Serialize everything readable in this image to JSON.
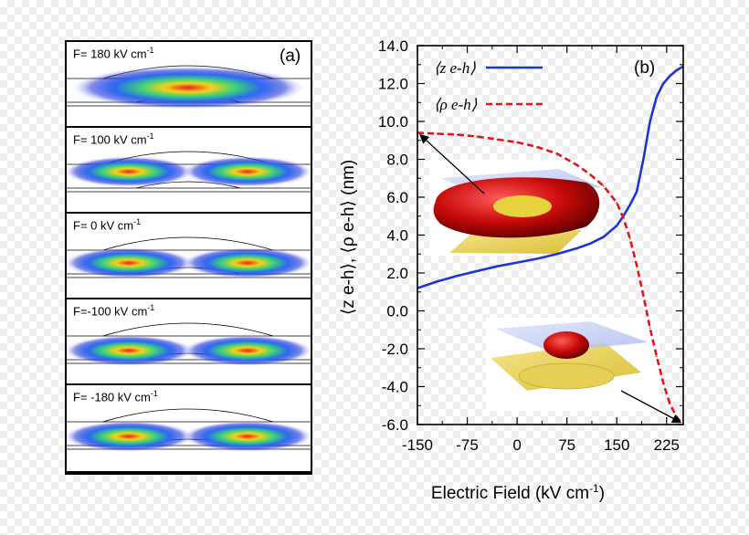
{
  "panel_a": {
    "tag": "(a)",
    "subpanels": [
      {
        "label": "F= 180 kV cm",
        "exp": "-1",
        "field": 180
      },
      {
        "label": "F= 100 kV cm",
        "exp": "-1",
        "field": 100
      },
      {
        "label": "F= 0 kV cm",
        "exp": "-1",
        "field": 0
      },
      {
        "label": "F=-100 kV cm",
        "exp": "-1",
        "field": -100
      },
      {
        "label": "F= -180 kV cm",
        "exp": "-1",
        "field": -180
      }
    ]
  },
  "chart_data": {
    "type": "line",
    "panel_tag": "(b)",
    "xlabel": "Electric Field (kV cm",
    "xlabel_exp": "-1",
    "xlabel_close": ")",
    "ylabel": "⟨z e-h⟩, ⟨ρ e-h⟩ (nm)",
    "xlim": [
      -150,
      250
    ],
    "ylim": [
      -6,
      14
    ],
    "xticks": [
      -150,
      -75,
      0,
      75,
      150,
      225
    ],
    "yticks": [
      "14.0",
      "12.0",
      "10.0",
      "8.0",
      "6.0",
      "4.0",
      "2.0",
      "0.0",
      "-2.0",
      "-4.0",
      "-6.0"
    ],
    "legend_position": "top-left",
    "series": [
      {
        "name": "⟨z e-h⟩",
        "color": "#1f35d0",
        "style": "solid",
        "x": [
          -150,
          -120,
          -90,
          -60,
          -30,
          0,
          30,
          60,
          90,
          110,
          130,
          150,
          160,
          170,
          180,
          190,
          200,
          210,
          220,
          230,
          240,
          250
        ],
        "y": [
          1.2,
          1.55,
          1.85,
          2.1,
          2.35,
          2.55,
          2.75,
          3.0,
          3.3,
          3.55,
          3.9,
          4.5,
          5.0,
          5.6,
          6.3,
          8.0,
          10.0,
          11.3,
          12.0,
          12.4,
          12.7,
          12.9
        ]
      },
      {
        "name": "⟨ρ e-h⟩",
        "color": "#e0161e",
        "style": "dashed",
        "x": [
          -150,
          -120,
          -90,
          -60,
          -30,
          0,
          30,
          60,
          90,
          110,
          130,
          150,
          160,
          170,
          180,
          190,
          200,
          210,
          220,
          230,
          240,
          250
        ],
        "y": [
          9.4,
          9.35,
          9.3,
          9.2,
          9.05,
          8.9,
          8.65,
          8.3,
          7.7,
          7.2,
          6.6,
          5.7,
          4.9,
          3.8,
          2.4,
          0.8,
          -0.9,
          -2.4,
          -3.8,
          -4.9,
          -5.6,
          -6.0
        ]
      }
    ]
  },
  "insets": [
    {
      "name": "inset-upper-pancake",
      "color": "#c80a0a",
      "pointer_to": {
        "series": "⟨ρ e-h⟩",
        "x": -150,
        "y": 9.4
      }
    },
    {
      "name": "inset-lower-blob",
      "color": "#c80a0a",
      "pointer_to": {
        "series": "⟨ρ e-h⟩",
        "x": 250,
        "y": -6.0
      }
    }
  ]
}
